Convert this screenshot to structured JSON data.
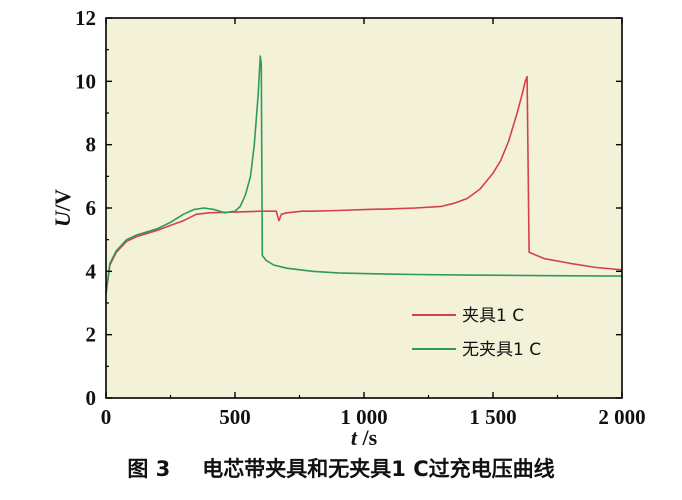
{
  "figure_caption": {
    "number": "图 3",
    "text": "电芯带夹具和无夹具1 C过充电压曲线"
  },
  "chart_data": {
    "type": "line",
    "xlabel_var": "t",
    "xlabel_unit": " /s",
    "ylabel_var": "U",
    "ylabel_unit": "/V",
    "xlim": [
      0,
      2000
    ],
    "ylim": [
      0,
      12
    ],
    "x_ticks": [
      0,
      500,
      1000,
      1500,
      2000
    ],
    "x_tick_labels": [
      "0",
      "500",
      "1 000",
      "1 500",
      "2 000"
    ],
    "y_ticks": [
      0,
      2,
      4,
      6,
      8,
      10,
      12
    ],
    "y_tick_labels": [
      "0",
      "2",
      "4",
      "6",
      "8",
      "10",
      "12"
    ],
    "grid": false,
    "plot_background": "#f4f1d9",
    "legend_position": "lower-right",
    "series": [
      {
        "name": "夹具1 C",
        "color": "#d6404a",
        "x": [
          0,
          15,
          40,
          80,
          120,
          160,
          200,
          250,
          300,
          350,
          400,
          500,
          600,
          660,
          670,
          680,
          700,
          760,
          800,
          900,
          1000,
          1100,
          1200,
          1300,
          1350,
          1400,
          1450,
          1500,
          1530,
          1560,
          1590,
          1610,
          1625,
          1632,
          1640,
          1700,
          1800,
          1900,
          2000
        ],
        "y": [
          3.3,
          4.2,
          4.6,
          4.95,
          5.1,
          5.2,
          5.3,
          5.45,
          5.6,
          5.8,
          5.85,
          5.87,
          5.9,
          5.9,
          5.6,
          5.8,
          5.85,
          5.9,
          5.9,
          5.92,
          5.95,
          5.97,
          6.0,
          6.05,
          6.15,
          6.3,
          6.6,
          7.1,
          7.5,
          8.1,
          8.9,
          9.5,
          10.0,
          10.15,
          4.6,
          4.4,
          4.25,
          4.12,
          4.05
        ]
      },
      {
        "name": "无夹具1 C",
        "color": "#2e9a5a",
        "x": [
          0,
          15,
          40,
          80,
          120,
          160,
          200,
          250,
          300,
          340,
          380,
          420,
          460,
          500,
          520,
          540,
          560,
          575,
          590,
          598,
          602,
          606,
          620,
          650,
          700,
          800,
          900,
          1000,
          1200,
          1400,
          1600,
          1800,
          2000
        ],
        "y": [
          3.3,
          4.25,
          4.65,
          5.0,
          5.15,
          5.25,
          5.35,
          5.55,
          5.8,
          5.95,
          6.0,
          5.95,
          5.85,
          5.9,
          6.05,
          6.4,
          7.0,
          8.0,
          9.6,
          10.8,
          10.5,
          4.5,
          4.35,
          4.2,
          4.1,
          4.0,
          3.95,
          3.93,
          3.9,
          3.88,
          3.87,
          3.86,
          3.85
        ]
      }
    ]
  }
}
